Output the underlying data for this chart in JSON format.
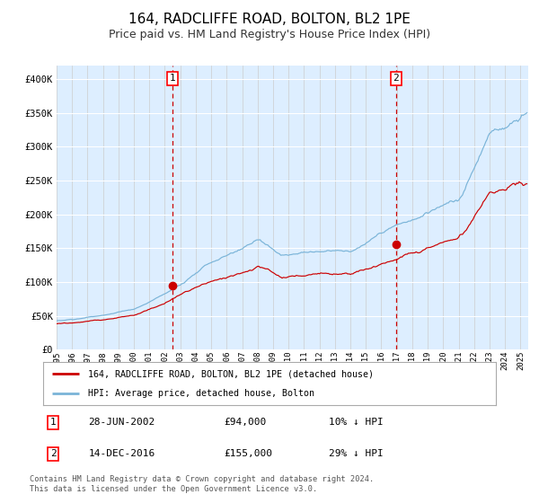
{
  "title": "164, RADCLIFFE ROAD, BOLTON, BL2 1PE",
  "subtitle": "Price paid vs. HM Land Registry's House Price Index (HPI)",
  "ylim": [
    0,
    420000
  ],
  "xlim_start": 1995.0,
  "xlim_end": 2025.5,
  "yticks": [
    0,
    50000,
    100000,
    150000,
    200000,
    250000,
    300000,
    350000,
    400000
  ],
  "ytick_labels": [
    "£0",
    "£50K",
    "£100K",
    "£150K",
    "£200K",
    "£250K",
    "£300K",
    "£350K",
    "£400K"
  ],
  "hpi_color": "#7ab4d8",
  "price_color": "#cc0000",
  "bg_color": "#ddeeff",
  "vline1_x": 2002.49,
  "vline2_x": 2016.96,
  "sale1_y": 94000,
  "sale2_y": 155000,
  "legend_label_price": "164, RADCLIFFE ROAD, BOLTON, BL2 1PE (detached house)",
  "legend_label_hpi": "HPI: Average price, detached house, Bolton",
  "table_row1": [
    "1",
    "28-JUN-2002",
    "£94,000",
    "10% ↓ HPI"
  ],
  "table_row2": [
    "2",
    "14-DEC-2016",
    "£155,000",
    "29% ↓ HPI"
  ],
  "footer": "Contains HM Land Registry data © Crown copyright and database right 2024.\nThis data is licensed under the Open Government Licence v3.0.",
  "title_fontsize": 11,
  "subtitle_fontsize": 9
}
